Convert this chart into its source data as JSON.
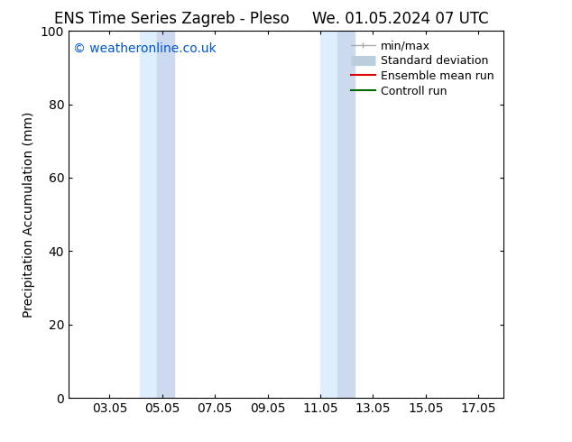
{
  "title_left": "ENS Time Series Zagreb - Pleso",
  "title_right": "We. 01.05.2024 07 UTC",
  "ylabel": "Precipitation Accumulation (mm)",
  "watermark": "© weatheronline.co.uk",
  "watermark_color": "#0055cc",
  "ylim": [
    0,
    100
  ],
  "xlim_start": 1.5,
  "xlim_end": 18.0,
  "xticks": [
    3.05,
    5.05,
    7.05,
    9.05,
    11.05,
    13.05,
    15.05,
    17.05
  ],
  "xtick_labels": [
    "03.05",
    "05.05",
    "07.05",
    "09.05",
    "11.05",
    "13.05",
    "15.05",
    "17.05"
  ],
  "yticks": [
    0,
    20,
    40,
    60,
    80,
    100
  ],
  "bg_color": "#ffffff",
  "plot_bg_color": "#ffffff",
  "shaded_bands": [
    {
      "x_start": 4.2,
      "x_end": 4.85,
      "color": "#ddeeff"
    },
    {
      "x_start": 4.85,
      "x_end": 5.5,
      "color": "#ccd9ee"
    },
    {
      "x_start": 11.05,
      "x_end": 11.7,
      "color": "#ddeeff"
    },
    {
      "x_start": 11.7,
      "x_end": 12.35,
      "color": "#ccd9ee"
    }
  ],
  "legend_entries": [
    {
      "label": "min/max",
      "color": "#aaaaaa",
      "lw": 1.5,
      "style": "minmax"
    },
    {
      "label": "Standard deviation",
      "color": "#bbcedd",
      "lw": 8,
      "style": "band"
    },
    {
      "label": "Ensemble mean run",
      "color": "#dd0000",
      "lw": 1.5,
      "style": "line"
    },
    {
      "label": "Controll run",
      "color": "#006600",
      "lw": 1.5,
      "style": "line"
    }
  ],
  "font_size": 10,
  "title_font_size": 12,
  "watermark_font_size": 10
}
